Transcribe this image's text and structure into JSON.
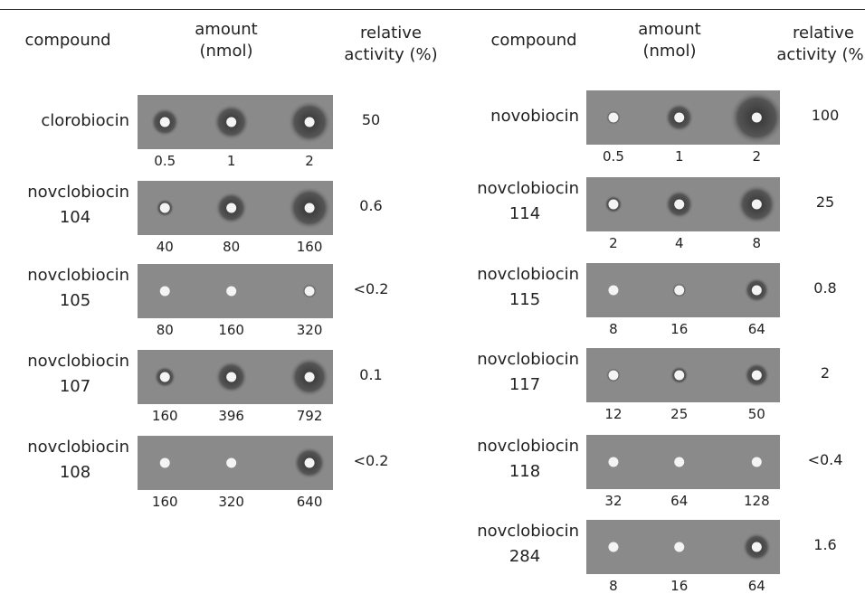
{
  "header": {
    "left": {
      "compound": "compound",
      "amount": [
        "amount",
        "(nmol)"
      ],
      "activity": [
        "relative",
        "activity (%)"
      ]
    },
    "right": {
      "compound": "compound",
      "amount": [
        "amount",
        "(nmol)"
      ],
      "activity": [
        "relative",
        "activity (%)"
      ]
    }
  },
  "left_rows": [
    {
      "name": [
        "clorobiocin"
      ],
      "amounts": [
        "0.5",
        "1",
        "2"
      ],
      "activity": "50"
    },
    {
      "name": [
        "novclobiocin",
        "104"
      ],
      "amounts": [
        "40",
        "80",
        "160"
      ],
      "activity": "0.6"
    },
    {
      "name": [
        "novclobiocin",
        "105"
      ],
      "amounts": [
        "80",
        "160",
        "320"
      ],
      "activity": "<0.2"
    },
    {
      "name": [
        "novclobiocin",
        "107"
      ],
      "amounts": [
        "160",
        "396",
        "792"
      ],
      "activity": "0.1"
    },
    {
      "name": [
        "novclobiocin",
        "108"
      ],
      "amounts": [
        "160",
        "320",
        "640"
      ],
      "activity": "<0.2"
    }
  ],
  "right_rows": [
    {
      "name": [
        "novobiocin"
      ],
      "amounts": [
        "0.5",
        "1",
        "2"
      ],
      "activity": "100"
    },
    {
      "name": [
        "novclobiocin",
        "114"
      ],
      "amounts": [
        "2",
        "4",
        "8"
      ],
      "activity": "25"
    },
    {
      "name": [
        "novclobiocin",
        "115"
      ],
      "amounts": [
        "8",
        "16",
        "64"
      ],
      "activity": "0.8"
    },
    {
      "name": [
        "novclobiocin",
        "117"
      ],
      "amounts": [
        "12",
        "25",
        "50"
      ],
      "activity": "2"
    },
    {
      "name": [
        "novclobiocin",
        "118"
      ],
      "amounts": [
        "32",
        "64",
        "128"
      ],
      "activity": "<0.4"
    },
    {
      "name": [
        "novclobiocin",
        "284"
      ],
      "amounts": [
        "8",
        "16",
        "64"
      ],
      "activity": "1.6"
    }
  ]
}
